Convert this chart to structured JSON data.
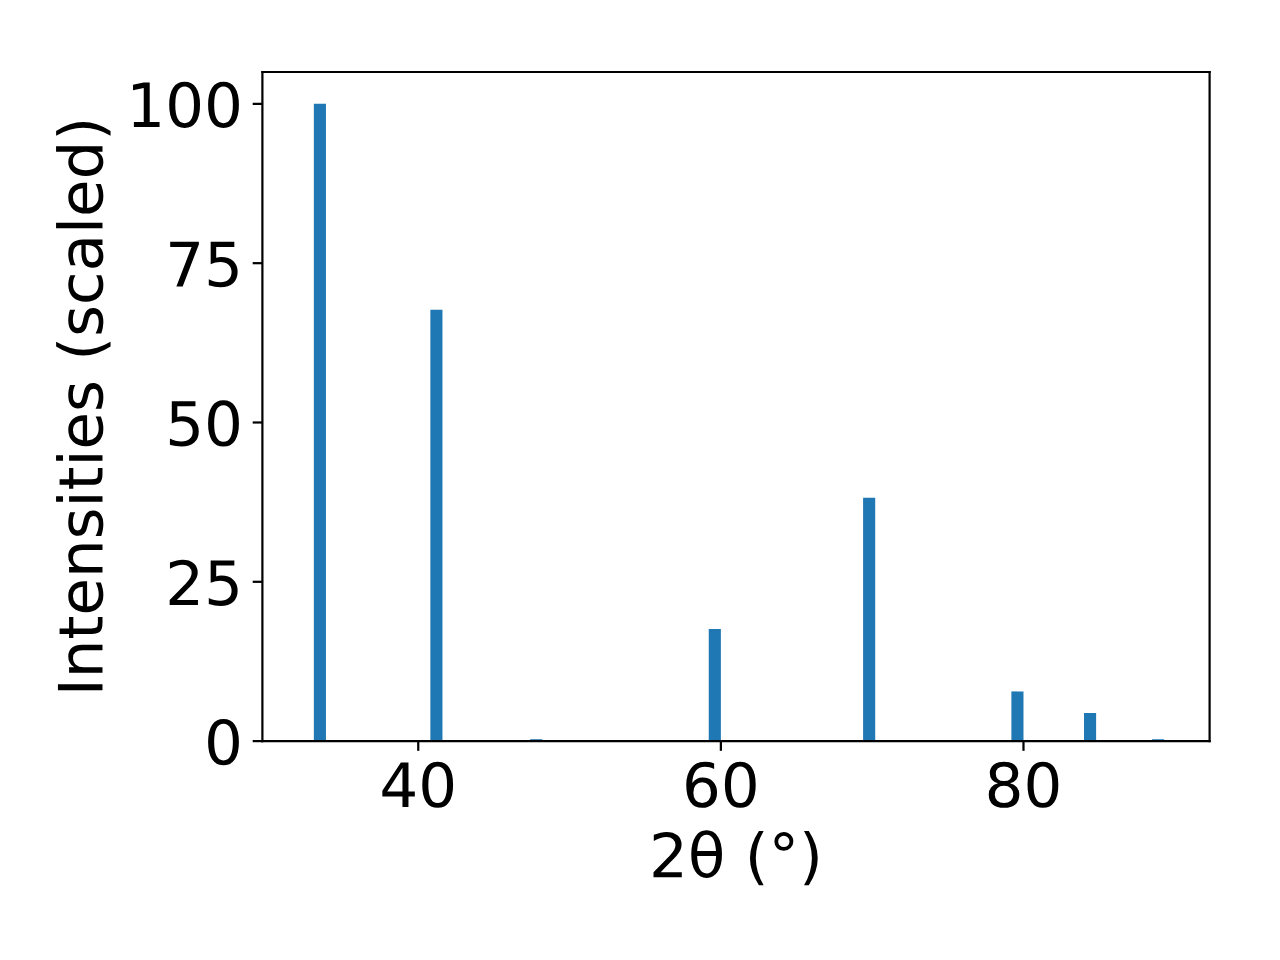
{
  "chart_data": {
    "type": "bar",
    "x": [
      33.5,
      41.2,
      47.8,
      59.6,
      69.8,
      79.6,
      84.4,
      88.9
    ],
    "values": [
      100,
      67.7,
      0.3,
      17.6,
      38.2,
      7.8,
      4.4,
      0.3
    ],
    "color": "#1f77b4",
    "xlabel": "2θ (°)",
    "ylabel": "Intensities (scaled)",
    "xlim": [
      29.7,
      92.3
    ],
    "xticks": [
      40,
      60,
      80
    ],
    "ylim": [
      0,
      105
    ],
    "yticks": [
      0,
      25,
      50,
      75,
      100
    ],
    "grid": false
  }
}
